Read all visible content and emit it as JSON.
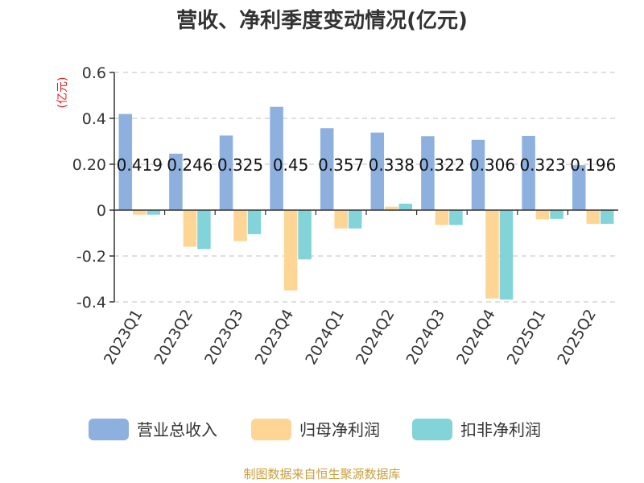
{
  "chart_data": {
    "type": "bar",
    "title": "营收、净利季度变动情况(亿元)",
    "ylabel": "(亿元)",
    "ylim": [
      -0.4,
      0.6
    ],
    "yticks": [
      -0.4,
      -0.2,
      0,
      0.2,
      0.4,
      0.6
    ],
    "ytick_labels": [
      "-0.4",
      "-0.2",
      "0",
      "0.20",
      "0.4",
      "0.6"
    ],
    "grid": true,
    "legend_position": "bottom",
    "categories": [
      "2023Q1",
      "2023Q2",
      "2023Q3",
      "2023Q4",
      "2024Q1",
      "2024Q2",
      "2024Q3",
      "2024Q4",
      "2025Q1",
      "2025Q2"
    ],
    "series": [
      {
        "name": "营业总收入",
        "color": "#8eb0de",
        "values": [
          0.419,
          0.246,
          0.325,
          0.45,
          0.357,
          0.338,
          0.322,
          0.306,
          0.323,
          0.196
        ],
        "labels": [
          "0.419",
          "0.246",
          "0.325",
          "0.45",
          "0.357",
          "0.338",
          "0.322",
          "0.306",
          "0.323",
          "0.196"
        ]
      },
      {
        "name": "归母净利润",
        "color": "#fdd595",
        "values": [
          -0.02,
          -0.16,
          -0.135,
          -0.35,
          -0.08,
          0.015,
          -0.065,
          -0.385,
          -0.04,
          -0.06
        ]
      },
      {
        "name": "扣非净利润",
        "color": "#82d4d8",
        "values": [
          -0.02,
          -0.17,
          -0.105,
          -0.215,
          -0.08,
          0.028,
          -0.065,
          -0.39,
          -0.038,
          -0.06
        ]
      }
    ],
    "source": "制图数据来自恒生聚源数据库"
  },
  "colors": {
    "unit_label": "#e02020",
    "source_text": "#c8a040",
    "grid": "#cccccc",
    "axis": "#333333"
  }
}
